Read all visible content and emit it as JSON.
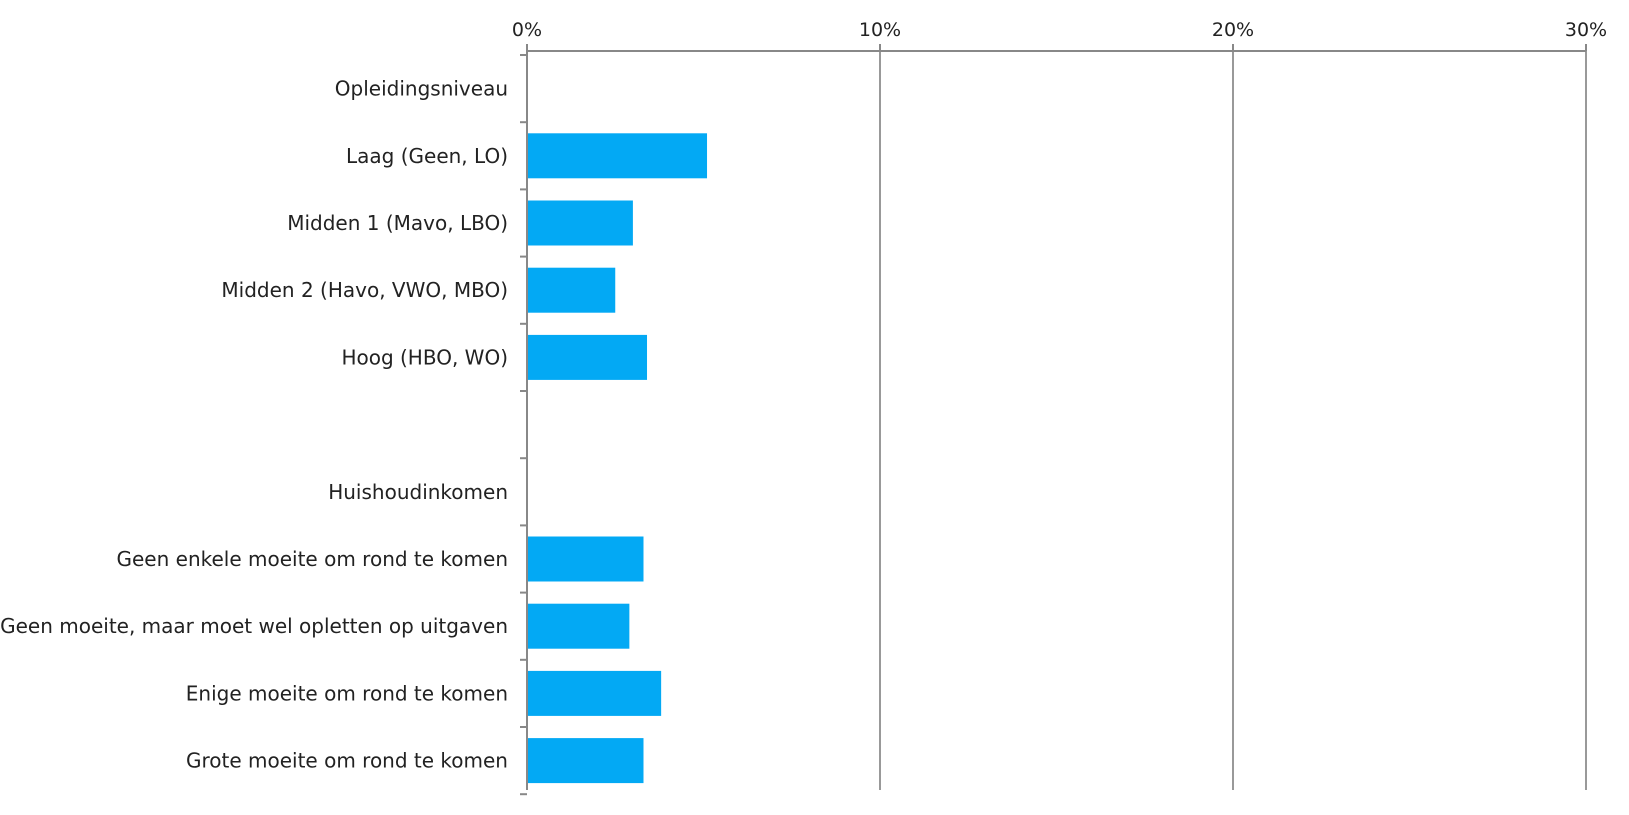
{
  "chart_data": {
    "type": "bar",
    "orientation": "horizontal",
    "title": "",
    "xlabel": "",
    "ylabel": "",
    "xlim": [
      0,
      30
    ],
    "x_ticks": [
      "0%",
      "10%",
      "20%",
      "30%"
    ],
    "x_axis_position": "top",
    "grid": true,
    "legend": "none",
    "bar_color": "#03A9F4",
    "categories": [
      "Opleidingsniveau",
      "Laag (Geen, LO)",
      "Midden 1 (Mavo, LBO)",
      "Midden 2 (Havo, VWO, MBO)",
      "Hoog (HBO, WO)",
      "",
      "Huishoudinkomen",
      "Geen enkele moeite om rond te komen",
      "Geen moeite, maar moet wel opletten op uitgaven",
      "Enige moeite om rond te komen",
      "Grote moeite om rond te komen"
    ],
    "values": [
      null,
      5.1,
      3.0,
      2.5,
      3.4,
      null,
      null,
      3.3,
      2.9,
      3.8,
      3.3
    ]
  }
}
